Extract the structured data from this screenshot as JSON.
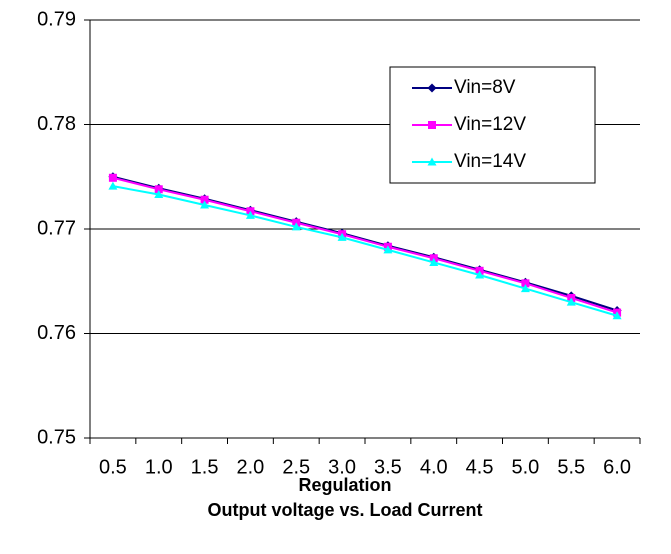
{
  "chart_data": {
    "type": "line",
    "categories": [
      "0.5",
      "1.0",
      "1.5",
      "2.0",
      "2.5",
      "3.0",
      "3.5",
      "4.0",
      "4.5",
      "5.0",
      "5.5",
      "6.0"
    ],
    "series": [
      {
        "name": "Vin=8V",
        "color": "#000080",
        "marker": "diamond",
        "values": [
          0.775,
          0.7739,
          0.7729,
          0.7718,
          0.7707,
          0.7696,
          0.7684,
          0.7673,
          0.7661,
          0.7649,
          0.7636,
          0.7622
        ]
      },
      {
        "name": "Vin=12V",
        "color": "#ff00ff",
        "marker": "square",
        "values": [
          0.7749,
          0.7738,
          0.7728,
          0.7717,
          0.7706,
          0.7695,
          0.7683,
          0.7672,
          0.766,
          0.7648,
          0.7634,
          0.762
        ]
      },
      {
        "name": "Vin=14V",
        "color": "#00ffff",
        "marker": "triangle",
        "values": [
          0.7741,
          0.7733,
          0.7723,
          0.7713,
          0.7702,
          0.7692,
          0.768,
          0.7668,
          0.7656,
          0.7643,
          0.763,
          0.7617
        ]
      }
    ],
    "ylim": [
      0.75,
      0.79
    ],
    "yticks": [
      0.75,
      0.76,
      0.77,
      0.78,
      0.79
    ],
    "grid": true,
    "legend": "upper right",
    "xlabel": "Regulation",
    "caption": "Output voltage vs. Load Current"
  }
}
